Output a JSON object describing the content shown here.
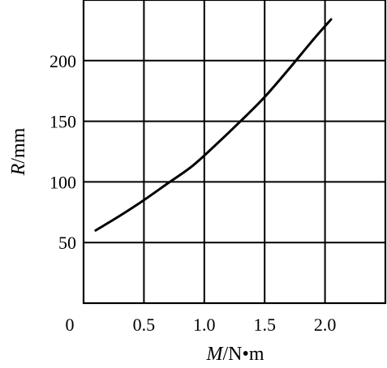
{
  "chart_data": {
    "type": "line",
    "title": "",
    "xlabel": {
      "var": "M",
      "unit": "/N•m"
    },
    "ylabel": {
      "var": "R",
      "unit": "/mm"
    },
    "xlim": [
      0,
      2.5
    ],
    "ylim": [
      0,
      250
    ],
    "x_ticks": [
      0.5,
      1.0,
      1.5,
      2.0
    ],
    "x_tick_labels": [
      "0.5",
      "1.0",
      "1.5",
      "2.0"
    ],
    "y_ticks": [
      50,
      100,
      150,
      200
    ],
    "y_tick_labels": [
      "50",
      "100",
      "150",
      "200"
    ],
    "origin_label": "0",
    "grid": true,
    "series": [
      {
        "x": [
          0.1,
          0.3,
          0.5,
          0.7,
          0.9,
          1.1,
          1.3,
          1.5,
          1.7,
          1.9,
          2.05
        ],
        "values": [
          60,
          72,
          85,
          99,
          113,
          131,
          150,
          170,
          193,
          217,
          234
        ]
      }
    ]
  }
}
